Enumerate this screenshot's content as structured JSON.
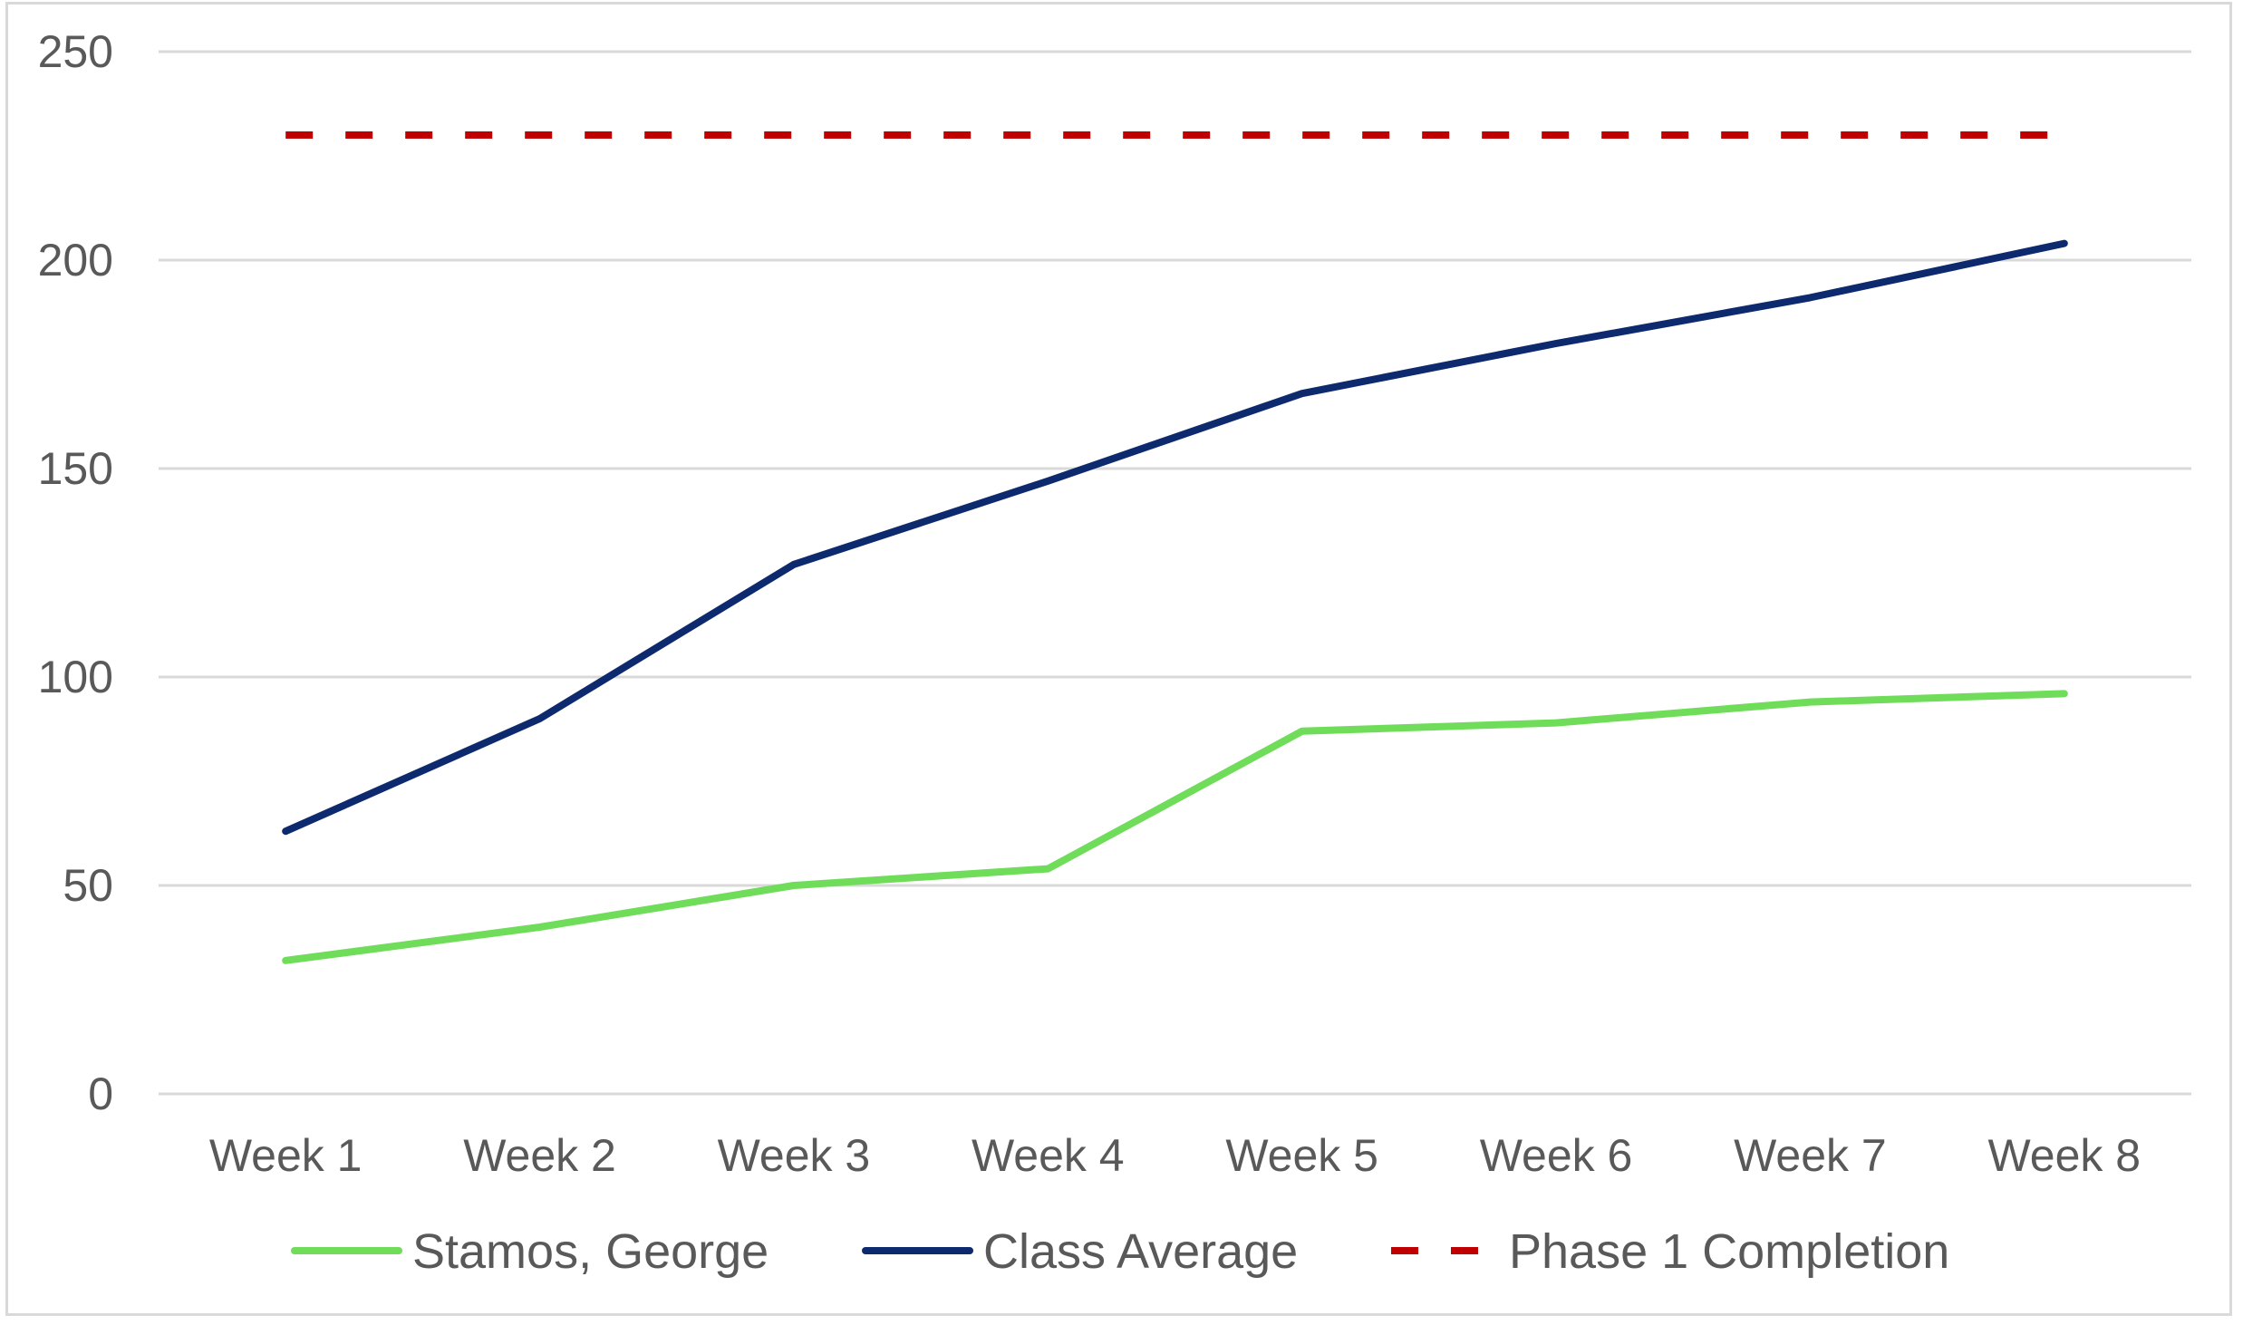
{
  "chart_data": {
    "type": "line",
    "title": "",
    "xlabel": "",
    "ylabel": "",
    "categories": [
      "Week 1",
      "Week 2",
      "Week 3",
      "Week 4",
      "Week 5",
      "Week 6",
      "Week 7",
      "Week 8"
    ],
    "ylim": [
      0,
      250
    ],
    "yticks": [
      "0",
      "50",
      "100",
      "150",
      "200",
      "250"
    ],
    "grid": true,
    "legend_position": "bottom",
    "series": [
      {
        "name": "Stamos, George",
        "color": "#6fdc5a",
        "style": "solid",
        "values": [
          32,
          40,
          50,
          54,
          87,
          89,
          94,
          96
        ]
      },
      {
        "name": "Class Average",
        "color": "#0d2a6e",
        "style": "solid",
        "values": [
          63,
          90,
          127,
          147,
          168,
          180,
          191,
          204
        ]
      },
      {
        "name": "Phase 1 Completion",
        "color": "#c00000",
        "style": "dashed",
        "values": [
          230,
          230,
          230,
          230,
          230,
          230,
          230,
          230
        ]
      }
    ]
  }
}
